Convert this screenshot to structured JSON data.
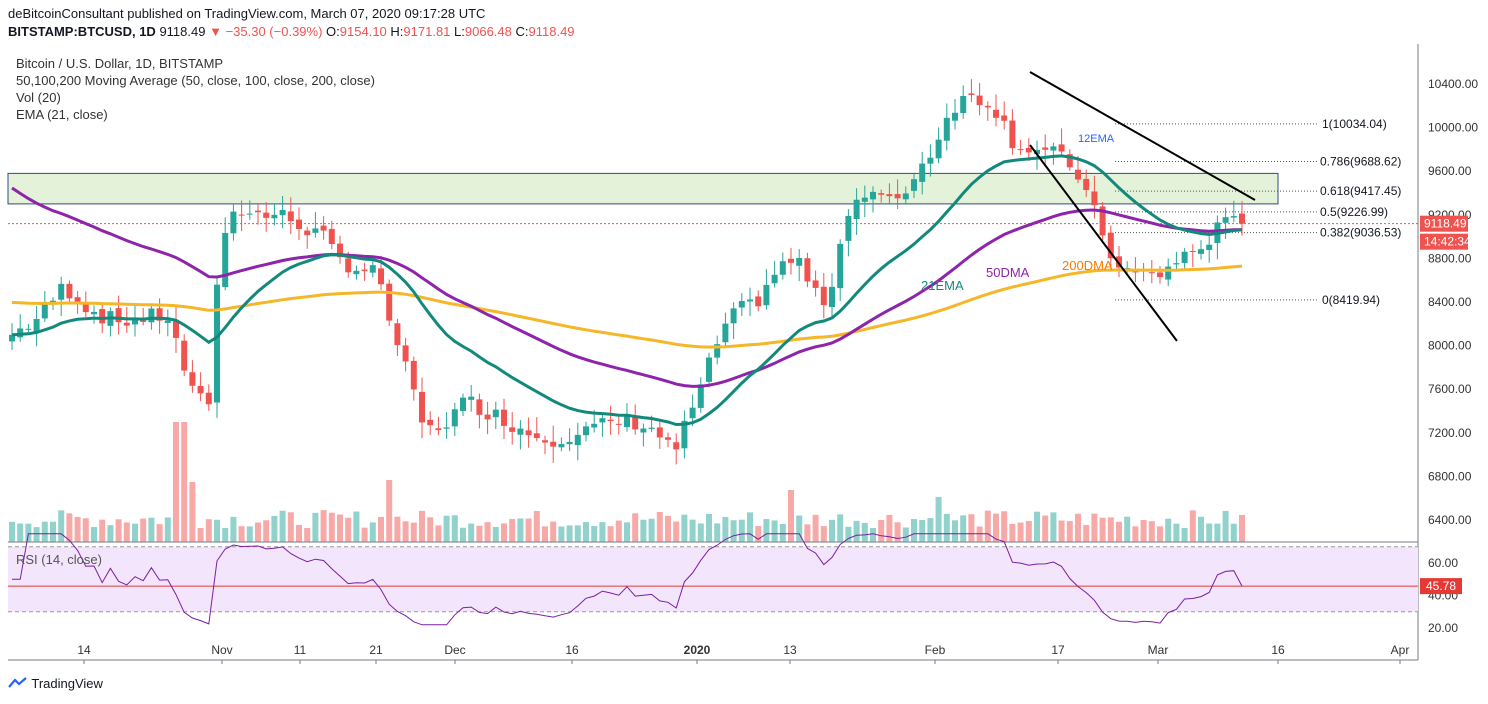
{
  "header": {
    "publisher_line": "deBitcoinConsultant published on TradingView.com, March 07, 2020 09:17:28 UTC",
    "symbol": "BITSTAMP:BTCUSD, 1D",
    "last": "9118.49",
    "change": "▼ −35.30 (−0.39%)",
    "o_label": "O:",
    "o": "9154.10",
    "h_label": "H:",
    "h": "9171.81",
    "l_label": "L:",
    "l": "9066.48",
    "c_label": "C:",
    "c": "9118.49"
  },
  "legend": {
    "title": "Bitcoin / U.S. Dollar, 1D, BITSTAMP",
    "ma": "50,100,200 Moving Average (50, close, 100, close, 200, close)",
    "vol": "Vol (20)",
    "ema": "EMA (21, close)",
    "rsi": "RSI (14, close)"
  },
  "branding": "TradingView",
  "annotations": {
    "ema21": "21EMA",
    "dma50": "50DMA",
    "dma200": "200DMA",
    "ema12": "12EMA"
  },
  "badges": {
    "price": "9118.49",
    "timer": "14:42:34",
    "rsi": "45.78"
  },
  "colors": {
    "up": "#26a69a",
    "down": "#ef5350",
    "ema21": "#13897c",
    "ma50": "#8e24aa",
    "ma200": "#f5b627",
    "resistance_zone": "#e3f2d9",
    "rsi_band": "#f3e5fc",
    "rsi_line": "#7b1fa2"
  },
  "chart_data": {
    "type": "candlestick",
    "price_axis": {
      "ticks": [
        "10400.00",
        "10000.00",
        "9600.00",
        "9200.00",
        "8800.00",
        "8400.00",
        "8000.00",
        "7600.00",
        "7200.00",
        "6800.00",
        "6400.00"
      ],
      "range": [
        6200,
        10620
      ]
    },
    "rsi_axis": {
      "ticks": [
        "60.00",
        "40.00",
        "20.00"
      ]
    },
    "x_labels": [
      "14",
      "Nov",
      "11",
      "21",
      "Dec",
      "16",
      "2020",
      "13",
      "Feb",
      "17",
      "Mar",
      "16",
      "Apr"
    ],
    "fibonacci": [
      {
        "label": "1(10034.04)",
        "value": 10034.04
      },
      {
        "label": "0.786(9688.62)",
        "value": 9688.62
      },
      {
        "label": "0.618(9417.45)",
        "value": 9417.45
      },
      {
        "label": "0.5(9226.99)",
        "value": 9226.99
      },
      {
        "label": "0.382(9036.53)",
        "value": 9036.53
      },
      {
        "label": "0(8419.94)",
        "value": 8419.94
      }
    ],
    "resistance_zone": [
      9300,
      9580
    ],
    "last_price": 9118.49,
    "rsi_last": 45.78
  }
}
